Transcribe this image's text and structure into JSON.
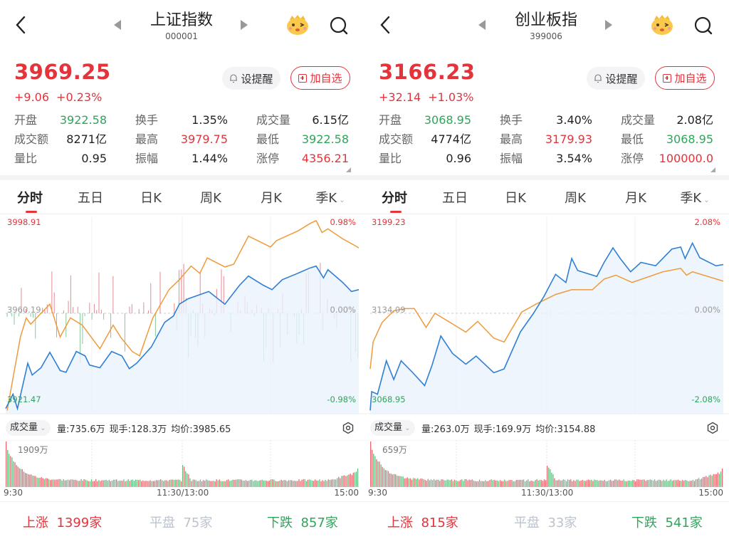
{
  "colors": {
    "up": "#e3343c",
    "down": "#2ea55a",
    "price_line": "#2f7fd6",
    "avg_line": "#ef9a3c",
    "fill": "#eaf3fb"
  },
  "panels": [
    {
      "title": "上证指数",
      "code": "000001",
      "price": "3969.25",
      "change": "+9.06",
      "change_pct": "+0.23%",
      "remind_label": "设提醒",
      "add_fav_label": "加自选",
      "stats": [
        {
          "label": "开盘",
          "value": "3922.58",
          "color": "green"
        },
        {
          "label": "换手",
          "value": "1.35%",
          "color": "dark"
        },
        {
          "label": "成交量",
          "value": "6.15亿",
          "color": "dark"
        },
        {
          "label": "成交额",
          "value": "8271亿",
          "color": "dark"
        },
        {
          "label": "最高",
          "value": "3979.75",
          "color": "red"
        },
        {
          "label": "最低",
          "value": "3922.58",
          "color": "green"
        },
        {
          "label": "量比",
          "value": "0.95",
          "color": "dark"
        },
        {
          "label": "振幅",
          "value": "1.44%",
          "color": "dark"
        },
        {
          "label": "涨停",
          "value": "4356.21",
          "color": "red"
        }
      ],
      "tabs": [
        "分时",
        "五日",
        "日K",
        "周K",
        "月K",
        "季K"
      ],
      "active_tab": "分时",
      "chart": {
        "top_price": "3998.91",
        "mid_price": "3960.19",
        "bottom_price": "3921.47",
        "top_pct": "0.98%",
        "mid_pct": "0.00%",
        "bottom_pct": "-0.98%",
        "max_pct": 0.98,
        "show_flow_bars": true,
        "price_series": [
          [
            0,
            -1.05
          ],
          [
            5,
            -0.89
          ],
          [
            8,
            -1.05
          ],
          [
            15,
            -0.55
          ],
          [
            18,
            -0.68
          ],
          [
            24,
            -0.6
          ],
          [
            30,
            -0.43
          ],
          [
            37,
            -0.63
          ],
          [
            41,
            -0.65
          ],
          [
            48,
            -0.42
          ],
          [
            54,
            -0.47
          ],
          [
            57,
            -0.57
          ],
          [
            64,
            -0.6
          ],
          [
            72,
            -0.42
          ],
          [
            79,
            -0.47
          ],
          [
            84,
            -0.61
          ],
          [
            89,
            -0.55
          ],
          [
            99,
            -0.37
          ],
          [
            108,
            -0.1
          ],
          [
            114,
            -0.03
          ],
          [
            118,
            0.1
          ],
          [
            124,
            0.16
          ],
          [
            138,
            0.24
          ],
          [
            149,
            0.1
          ],
          [
            159,
            0.31
          ],
          [
            165,
            0.41
          ],
          [
            175,
            0.31
          ],
          [
            181,
            0.26
          ],
          [
            188,
            0.37
          ],
          [
            197,
            0.43
          ],
          [
            207,
            0.5
          ],
          [
            211,
            0.52
          ],
          [
            216,
            0.39
          ],
          [
            219,
            0.48
          ],
          [
            229,
            0.34
          ],
          [
            235,
            0.24
          ],
          [
            240,
            0.26
          ]
        ],
        "avg_series": [
          [
            1,
            -1.07
          ],
          [
            5,
            -0.71
          ],
          [
            10,
            -0.26
          ],
          [
            14,
            -0.05
          ],
          [
            17,
            -0.12
          ],
          [
            24,
            0
          ],
          [
            30,
            0.1
          ],
          [
            37,
            -0.26
          ],
          [
            44,
            -0.05
          ],
          [
            52,
            -0.13
          ],
          [
            64,
            -0.39
          ],
          [
            73,
            -0.13
          ],
          [
            78,
            -0.26
          ],
          [
            86,
            -0.42
          ],
          [
            91,
            -0.47
          ],
          [
            100,
            -0.05
          ],
          [
            111,
            0.26
          ],
          [
            118,
            0.37
          ],
          [
            126,
            0.52
          ],
          [
            132,
            0.44
          ],
          [
            137,
            0.61
          ],
          [
            149,
            0.51
          ],
          [
            155,
            0.54
          ],
          [
            165,
            0.85
          ],
          [
            170,
            0.81
          ],
          [
            180,
            0.73
          ],
          [
            184,
            0.8
          ],
          [
            199,
            0.91
          ],
          [
            207,
            0.99
          ],
          [
            211,
            1.02
          ],
          [
            215,
            0.89
          ],
          [
            219,
            0.93
          ],
          [
            229,
            0.82
          ],
          [
            238,
            0.74
          ],
          [
            240,
            0.72
          ]
        ]
      },
      "volume": {
        "selector": "成交量",
        "vol": "量:735.6万",
        "hand": "现手:128.3万",
        "avg_price": "均价:3985.65",
        "max": "1909万",
        "t_open": "9:30",
        "t_mid": "11:30/13:00",
        "t_close": "15:00"
      },
      "breadth": {
        "up_label": "上涨",
        "up": "1399家",
        "flat_label": "平盘",
        "flat": "75家",
        "down_label": "下跌",
        "down": "857家"
      }
    },
    {
      "title": "创业板指",
      "code": "399006",
      "price": "3166.23",
      "change": "+32.14",
      "change_pct": "+1.03%",
      "remind_label": "设提醒",
      "add_fav_label": "加自选",
      "stats": [
        {
          "label": "开盘",
          "value": "3068.95",
          "color": "green"
        },
        {
          "label": "换手",
          "value": "3.40%",
          "color": "dark"
        },
        {
          "label": "成交量",
          "value": "2.08亿",
          "color": "dark"
        },
        {
          "label": "成交额",
          "value": "4774亿",
          "color": "dark"
        },
        {
          "label": "最高",
          "value": "3179.93",
          "color": "red"
        },
        {
          "label": "最低",
          "value": "3068.95",
          "color": "green"
        },
        {
          "label": "量比",
          "value": "0.96",
          "color": "dark"
        },
        {
          "label": "振幅",
          "value": "3.54%",
          "color": "dark"
        },
        {
          "label": "涨停",
          "value": "100000.0",
          "color": "red"
        }
      ],
      "tabs": [
        "分时",
        "五日",
        "日K",
        "周K",
        "月K",
        "季K"
      ],
      "active_tab": "分时",
      "chart": {
        "top_price": "3199.23",
        "mid_price": "3134.09",
        "bottom_price": "3068.95",
        "top_pct": "2.08%",
        "mid_pct": "0.00%",
        "bottom_pct": "-2.08%",
        "max_pct": 2.08,
        "show_flow_bars": false,
        "price_series": [
          [
            0,
            -2.27
          ],
          [
            1,
            -1.83
          ],
          [
            5,
            -1.89
          ],
          [
            11,
            -1.11
          ],
          [
            16,
            -1.55
          ],
          [
            21,
            -1.11
          ],
          [
            29,
            -1.39
          ],
          [
            37,
            -1.69
          ],
          [
            42,
            -1.22
          ],
          [
            48,
            -0.53
          ],
          [
            56,
            -0.94
          ],
          [
            65,
            -1.19
          ],
          [
            72,
            -1.0
          ],
          [
            84,
            -1.39
          ],
          [
            91,
            -1.3
          ],
          [
            102,
            -0.44
          ],
          [
            111,
            0
          ],
          [
            118,
            0.39
          ],
          [
            126,
            0.91
          ],
          [
            133,
            0.72
          ],
          [
            137,
            1.28
          ],
          [
            141,
            1.0
          ],
          [
            154,
            0.86
          ],
          [
            159,
            1.19
          ],
          [
            165,
            1.53
          ],
          [
            170,
            1.28
          ],
          [
            177,
            0.97
          ],
          [
            184,
            1.19
          ],
          [
            194,
            1.11
          ],
          [
            205,
            1.5
          ],
          [
            211,
            1.55
          ],
          [
            214,
            1.28
          ],
          [
            219,
            1.64
          ],
          [
            224,
            1.3
          ],
          [
            235,
            1.11
          ],
          [
            240,
            1.14
          ]
        ],
        "avg_series": [
          [
            0,
            -1.3
          ],
          [
            2,
            -0.67
          ],
          [
            8,
            -0.22
          ],
          [
            16,
            0.06
          ],
          [
            24,
            0.11
          ],
          [
            30,
            0.11
          ],
          [
            38,
            -0.33
          ],
          [
            44,
            0
          ],
          [
            56,
            -0.25
          ],
          [
            65,
            -0.44
          ],
          [
            73,
            -0.19
          ],
          [
            84,
            -0.58
          ],
          [
            91,
            -0.67
          ],
          [
            103,
            0.03
          ],
          [
            113,
            0.22
          ],
          [
            126,
            0.44
          ],
          [
            137,
            0.55
          ],
          [
            151,
            0.55
          ],
          [
            159,
            0.8
          ],
          [
            167,
            0.89
          ],
          [
            178,
            0.72
          ],
          [
            199,
            0.97
          ],
          [
            211,
            1.05
          ],
          [
            215,
            0.89
          ],
          [
            219,
            0.97
          ],
          [
            240,
            0.75
          ]
        ]
      },
      "volume": {
        "selector": "成交量",
        "vol": "量:263.0万",
        "hand": "现手:169.9万",
        "avg_price": "均价:3154.88",
        "max": "659万",
        "t_open": "9:30",
        "t_mid": "11:30/13:00",
        "t_close": "15:00"
      },
      "breadth": {
        "up_label": "上涨",
        "up": "815家",
        "flat_label": "平盘",
        "flat": "33家",
        "down_label": "下跌",
        "down": "541家"
      }
    }
  ]
}
